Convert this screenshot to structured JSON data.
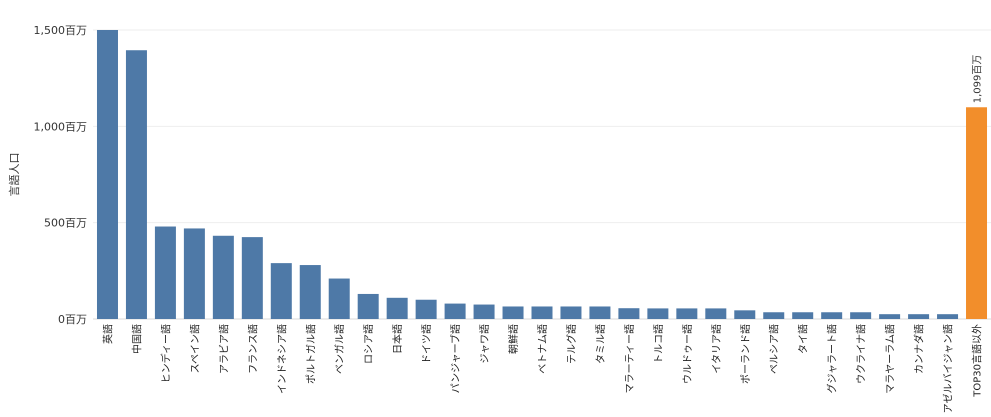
{
  "chart_data": {
    "type": "bar",
    "ylabel": "言語人口",
    "ylim": [
      0,
      1500
    ],
    "y_ticks": [
      {
        "value": 0,
        "label": "0百万"
      },
      {
        "value": 500,
        "label": "500百万"
      },
      {
        "value": 1000,
        "label": "1,000百万"
      },
      {
        "value": 1500,
        "label": "1,500百万"
      }
    ],
    "grid": true,
    "colors": {
      "bar": "#4e79a7",
      "highlight": "#f28e2b"
    },
    "categories": [
      "英語",
      "中国語",
      "ヒンディー語",
      "スペイン語",
      "アラビア語",
      "フランス語",
      "インドネシア語",
      "ポルトガル語",
      "ベンガル語",
      "ロシア語",
      "日本語",
      "ドイツ語",
      "パンジャーブ語",
      "ジャワ語",
      "朝鮮語",
      "ベトナム語",
      "テルグ語",
      "タミル語",
      "マラーティー語",
      "トルコ語",
      "ウルドゥー語",
      "イタリア語",
      "ポーランド語",
      "ペルシア語",
      "タイ語",
      "グジャラート語",
      "ウクライナ語",
      "マラヤーラム語",
      "カンナダ語",
      "アゼルバイジャン語",
      "TOP30言語以外"
    ],
    "values": [
      1500,
      1395,
      480,
      470,
      432,
      425,
      290,
      280,
      210,
      130,
      110,
      100,
      80,
      75,
      65,
      65,
      65,
      65,
      56,
      55,
      55,
      55,
      45,
      35,
      35,
      35,
      35,
      25,
      25,
      25,
      1099
    ],
    "highlight_index": 30,
    "data_labels": [
      {
        "index": 30,
        "text": "1,099百万"
      }
    ]
  }
}
